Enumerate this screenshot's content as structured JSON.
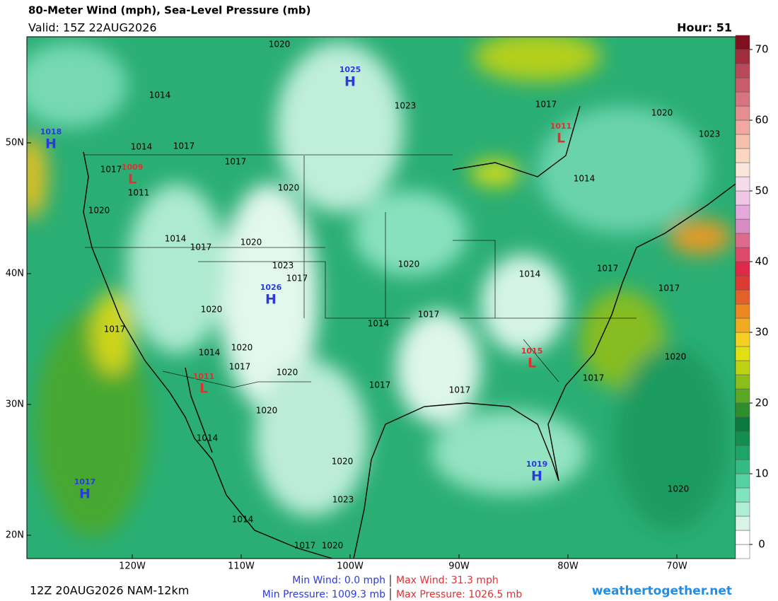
{
  "header": {
    "title": "80-Meter Wind (mph), Sea-Level Pressure (mb)",
    "valid": "Valid: 15Z 22AUG2026",
    "hour": "Hour: 51"
  },
  "colorbar": {
    "lim": [
      -2,
      72
    ],
    "ticks": [
      0,
      10,
      20,
      30,
      40,
      50,
      60,
      70
    ],
    "colors": [
      "#ffffff",
      "#ffffff",
      "#d6f5e6",
      "#aeeed4",
      "#80e4bf",
      "#55d2a2",
      "#32bc84",
      "#1ea468",
      "#118e50",
      "#0a7a3c",
      "#2e8e2c",
      "#5aa824",
      "#8cbe1a",
      "#bcd212",
      "#e2e010",
      "#f4d020",
      "#f2aa22",
      "#ec8822",
      "#e4602a",
      "#dc3a34",
      "#e0284a",
      "#e04a6a",
      "#de6a8e",
      "#d88cc4",
      "#e4a8dc",
      "#efc6e6",
      "#f6dcea",
      "#fbe6dc",
      "#fad8c0",
      "#f6c0ac",
      "#f0a8a0",
      "#e48e90",
      "#d87480",
      "#c85c6c",
      "#b8485a",
      "#a02c3c",
      "#801020"
    ]
  },
  "lat_ticks": [
    {
      "value": 20,
      "label": "20N"
    },
    {
      "value": 30,
      "label": "30N"
    },
    {
      "value": 40,
      "label": "40N"
    },
    {
      "value": 50,
      "label": "50N"
    }
  ],
  "lon_ticks": [
    {
      "value": -120,
      "label": "120W"
    },
    {
      "value": -110,
      "label": "110W"
    },
    {
      "value": -100,
      "label": "100W"
    },
    {
      "value": -90,
      "label": "90W"
    },
    {
      "value": -80,
      "label": "80W"
    },
    {
      "value": -70,
      "label": "70W"
    }
  ],
  "pressure_centers": [
    {
      "type": "H",
      "value": "1025"
    },
    {
      "type": "H",
      "value": "1018"
    },
    {
      "type": "L",
      "value": "1011"
    },
    {
      "type": "L",
      "value": "1009"
    },
    {
      "type": "H",
      "value": "1026"
    },
    {
      "type": "L",
      "value": "1015"
    },
    {
      "type": "L",
      "value": "1011"
    },
    {
      "type": "H",
      "value": "1019"
    },
    {
      "type": "H",
      "value": "1017"
    }
  ],
  "isobar_labels": [
    "1020",
    "1014",
    "1023",
    "1017",
    "1020",
    "1023",
    "1014",
    "1017",
    "1017",
    "1017",
    "1011",
    "1020",
    "1014",
    "1020",
    "1014",
    "1017",
    "1020",
    "1023",
    "1017",
    "1020",
    "1014",
    "1017",
    "1017",
    "1020",
    "1017",
    "1014",
    "1017",
    "1014",
    "1020",
    "1017",
    "1020",
    "1020",
    "1017",
    "1017",
    "1017",
    "1020",
    "1014",
    "1020",
    "1023",
    "1014",
    "1020",
    "1017",
    "1020"
  ],
  "footer": {
    "run": "12Z 20AUG2026 NAM-12km",
    "min_wind": "Min Wind:   0.0 mph",
    "max_wind": "Max Wind:  31.3 mph",
    "min_pressure": "Min Pressure: 1009.3 mb",
    "max_pressure": "Max Pressure: 1026.5 mb",
    "site": "weathertogether.net"
  }
}
